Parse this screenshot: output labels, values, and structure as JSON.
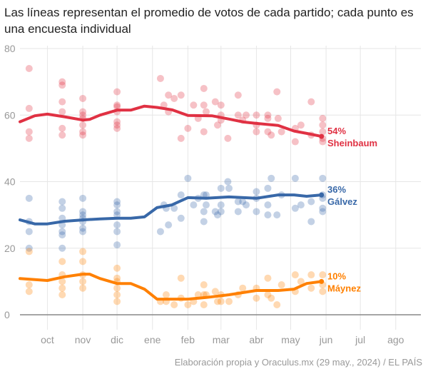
{
  "title": "Las líneas representan el promedio de votos de cada partido; cada punto es una encuesta individual",
  "source": "Elaboración propia y Oraculus.mx (29 may., 2024) / EL PAÍS",
  "chart_data": {
    "type": "scatter",
    "xlim": [
      "2023-09-07",
      "2024-08-23"
    ],
    "ylim": [
      0,
      80
    ],
    "yticks": [
      0,
      20,
      40,
      60,
      80
    ],
    "xticks": [
      {
        "date": "2023-10-01",
        "label": "oct"
      },
      {
        "date": "2023-11-01",
        "label": "nov"
      },
      {
        "date": "2023-12-01",
        "label": "dic"
      },
      {
        "date": "2024-01-01",
        "label": "ene"
      },
      {
        "date": "2024-02-01",
        "label": "feb"
      },
      {
        "date": "2024-03-01",
        "label": "mar"
      },
      {
        "date": "2024-04-01",
        "label": "abr"
      },
      {
        "date": "2024-05-01",
        "label": "may"
      },
      {
        "date": "2024-06-01",
        "label": "jun"
      },
      {
        "date": "2024-07-01",
        "label": "jul"
      },
      {
        "date": "2024-08-01",
        "label": "ago"
      }
    ],
    "grid": true,
    "series": [
      {
        "name": "Sheinbaum",
        "value_label": "54%",
        "color": "#e03143",
        "average": [
          [
            "2023-09-07",
            58
          ],
          [
            "2023-09-20",
            59.8
          ],
          [
            "2023-10-01",
            60.3
          ],
          [
            "2023-10-16",
            59.5
          ],
          [
            "2023-11-01",
            58.5
          ],
          [
            "2023-11-07",
            58.7
          ],
          [
            "2023-11-16",
            60
          ],
          [
            "2023-12-01",
            61.5
          ],
          [
            "2023-12-13",
            61.5
          ],
          [
            "2023-12-25",
            62.7
          ],
          [
            "2024-01-05",
            62.3
          ],
          [
            "2024-01-18",
            61.6
          ],
          [
            "2024-02-01",
            59.9
          ],
          [
            "2024-02-22",
            59.8
          ],
          [
            "2024-03-08",
            58.8
          ],
          [
            "2024-03-21",
            57.9
          ],
          [
            "2024-04-01",
            57.5
          ],
          [
            "2024-04-20",
            56.9
          ],
          [
            "2024-05-04",
            55.2
          ],
          [
            "2024-05-15",
            54.5
          ],
          [
            "2024-05-28",
            53.6
          ]
        ],
        "polls": [
          [
            "2023-09-15",
            74
          ],
          [
            "2023-09-15",
            62
          ],
          [
            "2023-09-15",
            55
          ],
          [
            "2023-09-15",
            53
          ],
          [
            "2023-10-14",
            70
          ],
          [
            "2023-10-14",
            69
          ],
          [
            "2023-10-14",
            64
          ],
          [
            "2023-10-14",
            61
          ],
          [
            "2023-10-14",
            56
          ],
          [
            "2023-10-14",
            54
          ],
          [
            "2023-11-01",
            65
          ],
          [
            "2023-11-01",
            61
          ],
          [
            "2023-11-01",
            60
          ],
          [
            "2023-11-01",
            59
          ],
          [
            "2023-11-01",
            57
          ],
          [
            "2023-11-01",
            55
          ],
          [
            "2023-11-01",
            54
          ],
          [
            "2023-12-01",
            67
          ],
          [
            "2023-12-01",
            63
          ],
          [
            "2023-12-01",
            62.5
          ],
          [
            "2023-12-01",
            61
          ],
          [
            "2023-12-01",
            58
          ],
          [
            "2023-12-01",
            57
          ],
          [
            "2023-12-01",
            56
          ],
          [
            "2024-01-08",
            71
          ],
          [
            "2024-01-11",
            63
          ],
          [
            "2024-01-15",
            66
          ],
          [
            "2024-01-15",
            61
          ],
          [
            "2024-01-20",
            65
          ],
          [
            "2024-01-26",
            66
          ],
          [
            "2024-01-26",
            53
          ],
          [
            "2024-02-01",
            56
          ],
          [
            "2024-02-06",
            63
          ],
          [
            "2024-02-10",
            59
          ],
          [
            "2024-02-15",
            68
          ],
          [
            "2024-02-15",
            63
          ],
          [
            "2024-02-15",
            55
          ],
          [
            "2024-02-17",
            61
          ],
          [
            "2024-02-25",
            64
          ],
          [
            "2024-02-27",
            57
          ],
          [
            "2024-03-01",
            63
          ],
          [
            "2024-03-01",
            60
          ],
          [
            "2024-03-01",
            58.5
          ],
          [
            "2024-03-07",
            53
          ],
          [
            "2024-03-16",
            66
          ],
          [
            "2024-03-16",
            60
          ],
          [
            "2024-03-20",
            58.5
          ],
          [
            "2024-03-23",
            60
          ],
          [
            "2024-04-01",
            60
          ],
          [
            "2024-04-01",
            57
          ],
          [
            "2024-04-01",
            55
          ],
          [
            "2024-04-11",
            60
          ],
          [
            "2024-04-11",
            59
          ],
          [
            "2024-04-11",
            55
          ],
          [
            "2024-04-14",
            54
          ],
          [
            "2024-04-19",
            67
          ],
          [
            "2024-04-20",
            59
          ],
          [
            "2024-04-23",
            55
          ],
          [
            "2024-05-05",
            56
          ],
          [
            "2024-05-05",
            52
          ],
          [
            "2024-05-10",
            57
          ],
          [
            "2024-05-19",
            64
          ],
          [
            "2024-05-19",
            54
          ],
          [
            "2024-05-29",
            59
          ],
          [
            "2024-05-29",
            57
          ],
          [
            "2024-05-29",
            55
          ],
          [
            "2024-05-29",
            53
          ],
          [
            "2024-05-29",
            52
          ]
        ]
      },
      {
        "name": "Gálvez",
        "value_label": "36%",
        "color": "#3868a8",
        "average": [
          [
            "2023-09-07",
            28.5
          ],
          [
            "2023-09-20",
            27.3
          ],
          [
            "2023-10-01",
            27.3
          ],
          [
            "2023-10-16",
            28.1
          ],
          [
            "2023-11-01",
            28.5
          ],
          [
            "2023-11-16",
            28.8
          ],
          [
            "2023-12-01",
            29
          ],
          [
            "2023-12-13",
            29
          ],
          [
            "2023-12-25",
            29.4
          ],
          [
            "2024-01-05",
            32.2
          ],
          [
            "2024-01-18",
            33
          ],
          [
            "2024-02-01",
            35.2
          ],
          [
            "2024-02-17",
            35
          ],
          [
            "2024-03-08",
            35.4
          ],
          [
            "2024-04-01",
            35
          ],
          [
            "2024-04-20",
            36
          ],
          [
            "2024-05-04",
            36
          ],
          [
            "2024-05-15",
            35.6
          ],
          [
            "2024-05-28",
            36
          ]
        ],
        "polls": [
          [
            "2023-09-15",
            35
          ],
          [
            "2023-09-15",
            28
          ],
          [
            "2023-09-15",
            25
          ],
          [
            "2023-09-15",
            20
          ],
          [
            "2023-10-14",
            34
          ],
          [
            "2023-10-14",
            32
          ],
          [
            "2023-10-14",
            29
          ],
          [
            "2023-10-14",
            27
          ],
          [
            "2023-10-14",
            25
          ],
          [
            "2023-10-14",
            24
          ],
          [
            "2023-10-14",
            20
          ],
          [
            "2023-11-01",
            35
          ],
          [
            "2023-11-01",
            31
          ],
          [
            "2023-11-01",
            30
          ],
          [
            "2023-11-01",
            29
          ],
          [
            "2023-11-01",
            28
          ],
          [
            "2023-11-01",
            26
          ],
          [
            "2023-11-01",
            25
          ],
          [
            "2023-12-01",
            34
          ],
          [
            "2023-12-01",
            33
          ],
          [
            "2023-12-01",
            31
          ],
          [
            "2023-12-01",
            30
          ],
          [
            "2023-12-01",
            27
          ],
          [
            "2023-12-01",
            25
          ],
          [
            "2023-12-01",
            21
          ],
          [
            "2024-01-08",
            25
          ],
          [
            "2024-01-11",
            33
          ],
          [
            "2024-01-13",
            32
          ],
          [
            "2024-01-15",
            27
          ],
          [
            "2024-01-20",
            32
          ],
          [
            "2024-01-26",
            36
          ],
          [
            "2024-01-26",
            29
          ],
          [
            "2024-02-01",
            41
          ],
          [
            "2024-02-06",
            33
          ],
          [
            "2024-02-10",
            35
          ],
          [
            "2024-02-15",
            36
          ],
          [
            "2024-02-15",
            31
          ],
          [
            "2024-02-15",
            28
          ],
          [
            "2024-02-17",
            36
          ],
          [
            "2024-02-17",
            33
          ],
          [
            "2024-02-25",
            31
          ],
          [
            "2024-02-27",
            30
          ],
          [
            "2024-03-01",
            38
          ],
          [
            "2024-03-01",
            33
          ],
          [
            "2024-03-01",
            31
          ],
          [
            "2024-03-07",
            40
          ],
          [
            "2024-03-08",
            38
          ],
          [
            "2024-03-16",
            34
          ],
          [
            "2024-03-16",
            31
          ],
          [
            "2024-03-20",
            34
          ],
          [
            "2024-03-23",
            33
          ],
          [
            "2024-04-01",
            37
          ],
          [
            "2024-04-01",
            35
          ],
          [
            "2024-04-01",
            31
          ],
          [
            "2024-04-11",
            38
          ],
          [
            "2024-04-11",
            33
          ],
          [
            "2024-04-11",
            30
          ],
          [
            "2024-04-14",
            41
          ],
          [
            "2024-04-19",
            30
          ],
          [
            "2024-04-23",
            36
          ],
          [
            "2024-05-05",
            41
          ],
          [
            "2024-05-05",
            32
          ],
          [
            "2024-05-10",
            33
          ],
          [
            "2024-05-19",
            34
          ],
          [
            "2024-05-19",
            28
          ],
          [
            "2024-05-29",
            41
          ],
          [
            "2024-05-29",
            36
          ],
          [
            "2024-05-29",
            35
          ],
          [
            "2024-05-29",
            32
          ],
          [
            "2024-05-29",
            31
          ]
        ]
      },
      {
        "name": "Máynez",
        "value_label": "10%",
        "color": "#ff8000",
        "average": [
          [
            "2023-09-07",
            10.9
          ],
          [
            "2023-10-01",
            10.3
          ],
          [
            "2023-10-16",
            11.4
          ],
          [
            "2023-11-01",
            12.2
          ],
          [
            "2023-11-07",
            12.2
          ],
          [
            "2023-11-16",
            10.9
          ],
          [
            "2023-12-01",
            9.4
          ],
          [
            "2023-12-13",
            9.4
          ],
          [
            "2023-12-25",
            7.7
          ],
          [
            "2024-01-05",
            4.7
          ],
          [
            "2024-01-18",
            4.7
          ],
          [
            "2024-02-01",
            4.7
          ],
          [
            "2024-02-17",
            5.2
          ],
          [
            "2024-03-08",
            6
          ],
          [
            "2024-04-01",
            7.3
          ],
          [
            "2024-04-20",
            7.3
          ],
          [
            "2024-05-04",
            7.7
          ],
          [
            "2024-05-15",
            9.4
          ],
          [
            "2024-05-28",
            10
          ]
        ],
        "polls": [
          [
            "2023-09-15",
            19
          ],
          [
            "2023-09-15",
            9
          ],
          [
            "2023-09-15",
            7
          ],
          [
            "2023-10-14",
            16
          ],
          [
            "2023-10-14",
            12
          ],
          [
            "2023-10-14",
            10
          ],
          [
            "2023-10-14",
            8
          ],
          [
            "2023-10-14",
            6
          ],
          [
            "2023-11-01",
            19
          ],
          [
            "2023-11-01",
            16
          ],
          [
            "2023-11-01",
            12
          ],
          [
            "2023-11-01",
            10
          ],
          [
            "2023-11-01",
            8
          ],
          [
            "2023-12-01",
            14
          ],
          [
            "2023-12-01",
            11
          ],
          [
            "2023-12-01",
            10
          ],
          [
            "2023-12-01",
            8
          ],
          [
            "2023-12-01",
            6
          ],
          [
            "2023-12-01",
            4
          ],
          [
            "2024-01-08",
            4
          ],
          [
            "2024-01-13",
            6
          ],
          [
            "2024-01-13",
            4
          ],
          [
            "2024-01-20",
            3
          ],
          [
            "2024-01-26",
            11
          ],
          [
            "2024-01-26",
            5
          ],
          [
            "2024-02-01",
            3
          ],
          [
            "2024-02-06",
            4
          ],
          [
            "2024-02-10",
            6
          ],
          [
            "2024-02-15",
            9
          ],
          [
            "2024-02-15",
            6
          ],
          [
            "2024-02-15",
            3
          ],
          [
            "2024-02-17",
            6
          ],
          [
            "2024-02-25",
            7
          ],
          [
            "2024-02-27",
            4
          ],
          [
            "2024-03-01",
            6
          ],
          [
            "2024-03-01",
            4
          ],
          [
            "2024-03-08",
            4
          ],
          [
            "2024-03-16",
            6
          ],
          [
            "2024-03-20",
            8
          ],
          [
            "2024-04-01",
            8
          ],
          [
            "2024-04-01",
            5
          ],
          [
            "2024-04-11",
            11
          ],
          [
            "2024-04-11",
            6
          ],
          [
            "2024-04-14",
            5
          ],
          [
            "2024-04-19",
            3
          ],
          [
            "2024-04-23",
            9
          ],
          [
            "2024-05-05",
            12
          ],
          [
            "2024-05-05",
            7
          ],
          [
            "2024-05-10",
            10
          ],
          [
            "2024-05-19",
            12
          ],
          [
            "2024-05-19",
            8
          ],
          [
            "2024-05-29",
            12
          ],
          [
            "2024-05-29",
            9
          ],
          [
            "2024-05-29",
            7
          ]
        ]
      }
    ]
  }
}
